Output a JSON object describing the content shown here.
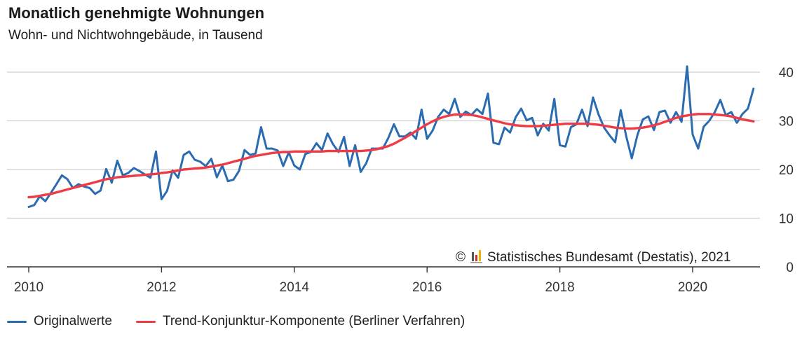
{
  "chart_data": {
    "type": "line",
    "title": "Monatlich genehmigte Wohnungen",
    "subtitle": "Wohn- und Nichtwohngebäude, in Tausend",
    "source": "© Statistisches Bundesamt (Destatis), 2021",
    "x_ticks": [
      "2010",
      "2012",
      "2014",
      "2016",
      "2018",
      "2020"
    ],
    "y_ticks": [
      "0",
      "10",
      "20",
      "30",
      "40"
    ],
    "ylim": [
      0,
      40
    ],
    "x_start": "2010-01",
    "x_end": "2020-12",
    "grid": "horizontal",
    "legend_position": "bottom-left",
    "series": [
      {
        "name": "Originalwerte",
        "color": "#2b6cb0",
        "values": [
          12.3,
          12.7,
          14.5,
          13.5,
          15.2,
          17.0,
          18.8,
          18.0,
          16.2,
          17.0,
          16.5,
          16.2,
          15.0,
          15.7,
          20.1,
          17.3,
          21.8,
          18.8,
          19.3,
          20.3,
          19.7,
          19.0,
          18.3,
          23.7,
          13.9,
          15.6,
          19.8,
          18.3,
          23.0,
          23.7,
          22.0,
          21.6,
          20.7,
          22.2,
          18.4,
          20.8,
          17.6,
          17.9,
          19.7,
          24.0,
          23.0,
          23.3,
          28.7,
          24.3,
          24.3,
          23.9,
          20.7,
          23.5,
          20.8,
          20.0,
          23.2,
          23.6,
          25.4,
          24.0,
          27.4,
          25.2,
          23.6,
          26.7,
          20.7,
          25.0,
          19.5,
          21.3,
          24.3,
          24.3,
          24.3,
          26.5,
          29.3,
          26.8,
          26.8,
          27.6,
          26.3,
          32.3,
          26.3,
          28.0,
          30.8,
          32.3,
          31.4,
          34.5,
          30.8,
          31.9,
          31.2,
          32.4,
          31.4,
          35.6,
          25.5,
          25.2,
          28.6,
          27.6,
          30.7,
          32.5,
          30.1,
          30.6,
          27.0,
          29.4,
          28.0,
          34.5,
          25.0,
          24.7,
          28.7,
          29.3,
          32.3,
          28.9,
          34.8,
          31.3,
          28.6,
          27.0,
          25.6,
          32.2,
          26.8,
          22.3,
          27.0,
          30.3,
          30.9,
          28.1,
          31.8,
          32.1,
          29.6,
          31.8,
          29.8,
          41.2,
          27.2,
          24.3,
          28.8,
          30.0,
          31.8,
          34.3,
          31.2,
          31.8,
          29.6,
          31.4,
          32.5,
          36.6
        ]
      },
      {
        "name": "Trend-Konjunktur-Komponente (Berliner Verfahren)",
        "color": "#ee3b45",
        "values": [
          14.3,
          14.4,
          14.6,
          14.8,
          15.0,
          15.3,
          15.6,
          15.9,
          16.2,
          16.5,
          16.8,
          17.1,
          17.4,
          17.7,
          18.0,
          18.2,
          18.4,
          18.5,
          18.6,
          18.7,
          18.8,
          18.9,
          19.0,
          19.1,
          19.3,
          19.4,
          19.6,
          19.8,
          20.0,
          20.1,
          20.2,
          20.3,
          20.4,
          20.6,
          20.8,
          21.0,
          21.3,
          21.6,
          21.9,
          22.2,
          22.5,
          22.8,
          23.0,
          23.2,
          23.4,
          23.5,
          23.6,
          23.6,
          23.7,
          23.7,
          23.7,
          23.7,
          23.7,
          23.7,
          23.8,
          23.8,
          23.8,
          23.8,
          23.8,
          23.8,
          23.8,
          23.9,
          24.0,
          24.2,
          24.5,
          24.8,
          25.3,
          25.9,
          26.5,
          27.2,
          27.9,
          28.6,
          29.3,
          29.9,
          30.4,
          30.8,
          31.1,
          31.3,
          31.3,
          31.3,
          31.2,
          31.0,
          30.7,
          30.4,
          30.1,
          29.8,
          29.5,
          29.3,
          29.1,
          29.0,
          28.9,
          28.9,
          28.9,
          29.0,
          29.1,
          29.2,
          29.3,
          29.4,
          29.4,
          29.4,
          29.4,
          29.4,
          29.3,
          29.2,
          29.0,
          28.8,
          28.6,
          28.5,
          28.4,
          28.4,
          28.5,
          28.6,
          28.8,
          29.1,
          29.4,
          29.8,
          30.2,
          30.6,
          30.9,
          31.1,
          31.3,
          31.4,
          31.4,
          31.4,
          31.3,
          31.2,
          31.1,
          30.9,
          30.6,
          30.3,
          30.1,
          29.9
        ]
      }
    ]
  }
}
